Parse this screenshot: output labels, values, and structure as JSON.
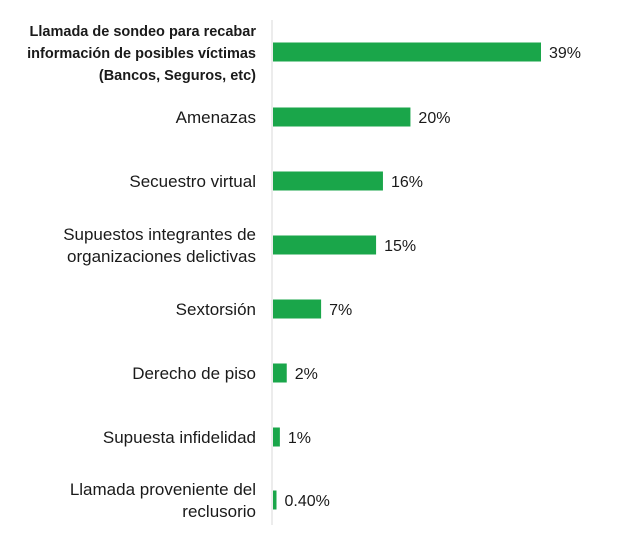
{
  "chart_data": {
    "type": "bar",
    "orientation": "horizontal",
    "title": "",
    "xlabel": "",
    "ylabel": "",
    "xlim": [
      0,
      39
    ],
    "bar_color": "#1aa64a",
    "axis_color": "#d9d9d9",
    "categories": [
      {
        "lines": [
          "Llamada de sondeo para recabar",
          "información de posibles víctimas",
          "(Bancos, Seguros, etc)"
        ],
        "value": 39,
        "label": "39%"
      },
      {
        "lines": [
          "Amenazas"
        ],
        "value": 20,
        "label": "20%"
      },
      {
        "lines": [
          "Secuestro virtual"
        ],
        "value": 16,
        "label": "16%"
      },
      {
        "lines": [
          "Supuestos integrantes de",
          "organizaciones delictivas"
        ],
        "value": 15,
        "label": "15%"
      },
      {
        "lines": [
          "Sextorsión"
        ],
        "value": 7,
        "label": "7%"
      },
      {
        "lines": [
          "Derecho de piso"
        ],
        "value": 2,
        "label": "2%"
      },
      {
        "lines": [
          "Supuesta infidelidad"
        ],
        "value": 1,
        "label": "1%"
      },
      {
        "lines": [
          "Llamada proveniente del",
          "reclusorio"
        ],
        "value": 0.4,
        "label": "0.40%"
      }
    ]
  }
}
